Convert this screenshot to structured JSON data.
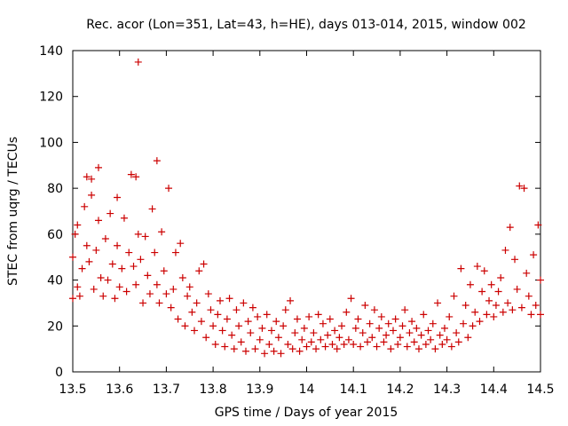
{
  "chart_data": {
    "type": "scatter",
    "title": "Rec. acor (Lon=351, Lat=43, h=HE), days 013-014, 2015, window 002",
    "xlabel": "GPS time / Days of year 2015",
    "ylabel": "STEC from uqrg / TECUs",
    "xlim": [
      13.5,
      14.5
    ],
    "ylim": [
      0,
      140
    ],
    "xticks": [
      13.5,
      13.6,
      13.7,
      13.8,
      13.9,
      14.0,
      14.1,
      14.2,
      14.3,
      14.4,
      14.5
    ],
    "xtick_labels": [
      "13.5",
      "13.6",
      "13.7",
      "13.8",
      "13.9",
      "14",
      "14.1",
      "14.2",
      "14.3",
      "14.4",
      "14.5"
    ],
    "yticks": [
      0,
      20,
      40,
      60,
      80,
      100,
      120,
      140
    ],
    "ytick_labels": [
      "0",
      "20",
      "40",
      "60",
      "80",
      "100",
      "120",
      "140"
    ],
    "grid": false,
    "marker": "plus",
    "color": "#cc0000",
    "series": [
      {
        "values": [
          [
            13.5,
            32
          ],
          [
            13.5,
            50
          ],
          [
            13.505,
            60
          ],
          [
            13.51,
            64
          ],
          [
            13.51,
            37
          ],
          [
            13.515,
            33
          ],
          [
            13.52,
            45
          ],
          [
            13.525,
            72
          ],
          [
            13.53,
            85
          ],
          [
            13.53,
            55
          ],
          [
            13.535,
            48
          ],
          [
            13.54,
            77
          ],
          [
            13.54,
            84
          ],
          [
            13.545,
            36
          ],
          [
            13.55,
            53
          ],
          [
            13.555,
            66
          ],
          [
            13.555,
            89
          ],
          [
            13.56,
            41
          ],
          [
            13.565,
            33
          ],
          [
            13.57,
            58
          ],
          [
            13.575,
            40
          ],
          [
            13.58,
            69
          ],
          [
            13.585,
            47
          ],
          [
            13.59,
            32
          ],
          [
            13.595,
            76
          ],
          [
            13.595,
            55
          ],
          [
            13.6,
            37
          ],
          [
            13.605,
            45
          ],
          [
            13.61,
            67
          ],
          [
            13.615,
            35
          ],
          [
            13.62,
            52
          ],
          [
            13.625,
            86
          ],
          [
            13.63,
            46
          ],
          [
            13.635,
            38
          ],
          [
            13.635,
            85
          ],
          [
            13.64,
            135
          ],
          [
            13.64,
            60
          ],
          [
            13.645,
            49
          ],
          [
            13.65,
            30
          ],
          [
            13.655,
            59
          ],
          [
            13.66,
            42
          ],
          [
            13.665,
            34
          ],
          [
            13.67,
            71
          ],
          [
            13.675,
            52
          ],
          [
            13.68,
            92
          ],
          [
            13.68,
            38
          ],
          [
            13.685,
            30
          ],
          [
            13.69,
            61
          ],
          [
            13.695,
            44
          ],
          [
            13.7,
            34
          ],
          [
            13.705,
            80
          ],
          [
            13.71,
            28
          ],
          [
            13.715,
            36
          ],
          [
            13.72,
            52
          ],
          [
            13.725,
            23
          ],
          [
            13.73,
            56
          ],
          [
            13.735,
            41
          ],
          [
            13.74,
            20
          ],
          [
            13.745,
            33
          ],
          [
            13.75,
            37
          ],
          [
            13.755,
            26
          ],
          [
            13.76,
            18
          ],
          [
            13.765,
            30
          ],
          [
            13.77,
            44
          ],
          [
            13.775,
            22
          ],
          [
            13.78,
            47
          ],
          [
            13.785,
            15
          ],
          [
            13.79,
            34
          ],
          [
            13.795,
            27
          ],
          [
            13.8,
            20
          ],
          [
            13.805,
            12
          ],
          [
            13.81,
            25
          ],
          [
            13.815,
            31
          ],
          [
            13.82,
            18
          ],
          [
            13.825,
            11
          ],
          [
            13.83,
            23
          ],
          [
            13.835,
            32
          ],
          [
            13.84,
            16
          ],
          [
            13.845,
            10
          ],
          [
            13.85,
            27
          ],
          [
            13.855,
            20
          ],
          [
            13.86,
            13
          ],
          [
            13.865,
            30
          ],
          [
            13.87,
            9
          ],
          [
            13.875,
            22
          ],
          [
            13.88,
            17
          ],
          [
            13.885,
            28
          ],
          [
            13.89,
            10
          ],
          [
            13.895,
            24
          ],
          [
            13.9,
            14
          ],
          [
            13.905,
            19
          ],
          [
            13.91,
            8
          ],
          [
            13.915,
            25
          ],
          [
            13.92,
            12
          ],
          [
            13.925,
            18
          ],
          [
            13.93,
            9
          ],
          [
            13.935,
            22
          ],
          [
            13.94,
            15
          ],
          [
            13.945,
            8
          ],
          [
            13.95,
            20
          ],
          [
            13.955,
            27
          ],
          [
            13.96,
            12
          ],
          [
            13.965,
            31
          ],
          [
            13.97,
            10
          ],
          [
            13.975,
            17
          ],
          [
            13.98,
            23
          ],
          [
            13.985,
            9
          ],
          [
            13.99,
            14
          ],
          [
            13.995,
            19
          ],
          [
            14.0,
            11
          ],
          [
            14.005,
            24
          ],
          [
            14.01,
            13
          ],
          [
            14.015,
            17
          ],
          [
            14.02,
            10
          ],
          [
            14.025,
            25
          ],
          [
            14.03,
            14
          ],
          [
            14.035,
            21
          ],
          [
            14.04,
            11
          ],
          [
            14.045,
            16
          ],
          [
            14.05,
            23
          ],
          [
            14.055,
            12
          ],
          [
            14.06,
            18
          ],
          [
            14.065,
            10
          ],
          [
            14.07,
            15
          ],
          [
            14.075,
            20
          ],
          [
            14.08,
            12
          ],
          [
            14.085,
            26
          ],
          [
            14.09,
            14
          ],
          [
            14.095,
            32
          ],
          [
            14.1,
            12
          ],
          [
            14.105,
            19
          ],
          [
            14.11,
            23
          ],
          [
            14.115,
            11
          ],
          [
            14.12,
            17
          ],
          [
            14.125,
            29
          ],
          [
            14.13,
            13
          ],
          [
            14.135,
            21
          ],
          [
            14.14,
            15
          ],
          [
            14.145,
            27
          ],
          [
            14.15,
            11
          ],
          [
            14.155,
            19
          ],
          [
            14.16,
            24
          ],
          [
            14.165,
            13
          ],
          [
            14.17,
            16
          ],
          [
            14.175,
            21
          ],
          [
            14.18,
            10
          ],
          [
            14.185,
            18
          ],
          [
            14.19,
            23
          ],
          [
            14.195,
            12
          ],
          [
            14.2,
            15
          ],
          [
            14.205,
            20
          ],
          [
            14.21,
            27
          ],
          [
            14.215,
            11
          ],
          [
            14.22,
            17
          ],
          [
            14.225,
            22
          ],
          [
            14.23,
            13
          ],
          [
            14.235,
            19
          ],
          [
            14.24,
            10
          ],
          [
            14.245,
            16
          ],
          [
            14.25,
            25
          ],
          [
            14.255,
            12
          ],
          [
            14.26,
            18
          ],
          [
            14.265,
            14
          ],
          [
            14.27,
            21
          ],
          [
            14.275,
            10
          ],
          [
            14.28,
            30
          ],
          [
            14.285,
            16
          ],
          [
            14.29,
            12
          ],
          [
            14.295,
            19
          ],
          [
            14.3,
            14
          ],
          [
            14.305,
            24
          ],
          [
            14.31,
            11
          ],
          [
            14.315,
            33
          ],
          [
            14.32,
            17
          ],
          [
            14.325,
            13
          ],
          [
            14.33,
            45
          ],
          [
            14.335,
            21
          ],
          [
            14.34,
            29
          ],
          [
            14.345,
            15
          ],
          [
            14.35,
            38
          ],
          [
            14.355,
            20
          ],
          [
            14.36,
            26
          ],
          [
            14.365,
            46
          ],
          [
            14.37,
            22
          ],
          [
            14.375,
            35
          ],
          [
            14.38,
            44
          ],
          [
            14.385,
            25
          ],
          [
            14.39,
            31
          ],
          [
            14.395,
            38
          ],
          [
            14.4,
            24
          ],
          [
            14.405,
            29
          ],
          [
            14.41,
            35
          ],
          [
            14.415,
            41
          ],
          [
            14.42,
            26
          ],
          [
            14.425,
            53
          ],
          [
            14.43,
            30
          ],
          [
            14.435,
            63
          ],
          [
            14.44,
            27
          ],
          [
            14.445,
            49
          ],
          [
            14.45,
            36
          ],
          [
            14.455,
            81
          ],
          [
            14.46,
            28
          ],
          [
            14.465,
            80
          ],
          [
            14.47,
            43
          ],
          [
            14.475,
            33
          ],
          [
            14.48,
            25
          ],
          [
            14.485,
            51
          ],
          [
            14.49,
            29
          ],
          [
            14.495,
            64
          ],
          [
            14.5,
            40
          ],
          [
            14.5,
            25
          ]
        ]
      }
    ]
  }
}
